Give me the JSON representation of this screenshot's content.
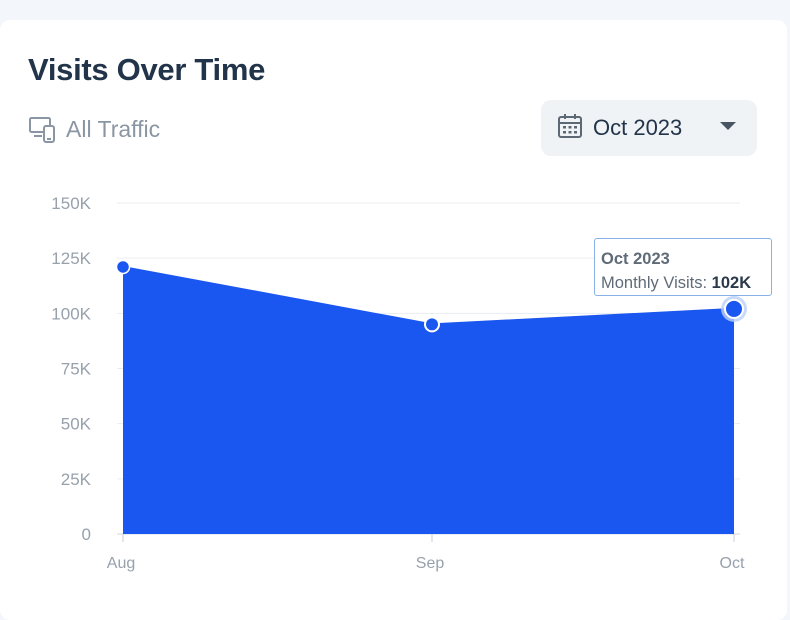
{
  "card": {
    "title": "Visits Over Time",
    "traffic_label": "All Traffic",
    "traffic_icon": "devices-icon",
    "date_select": {
      "value": "Oct 2023",
      "icon": "calendar-icon"
    }
  },
  "tooltip": {
    "title": "Oct 2023",
    "label": "Monthly Visits:",
    "value": "102K"
  },
  "colors": {
    "area": "#1a56f0",
    "grid": "#e9edf1",
    "text": "#22344a",
    "muted": "#8b96a3"
  },
  "chart_data": {
    "type": "area",
    "categories": [
      "Aug",
      "Sep",
      "Oct"
    ],
    "series": [
      {
        "values": [
          121000,
          95000,
          102000
        ]
      }
    ],
    "yticks": [
      "0",
      "25K",
      "50K",
      "75K",
      "100K",
      "125K",
      "150K"
    ],
    "ylim": [
      0,
      150000
    ],
    "grid": true,
    "highlight_index": 2
  }
}
